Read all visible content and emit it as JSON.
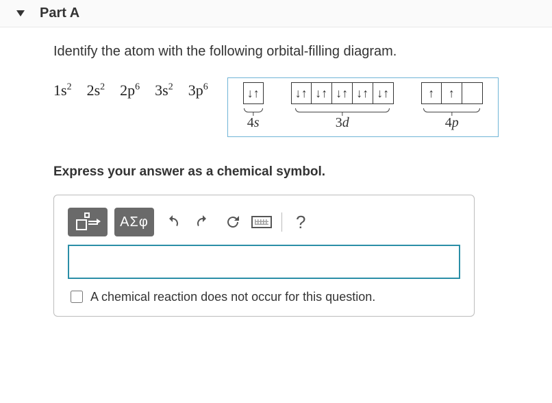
{
  "header": {
    "part_label": "Part A"
  },
  "question": "Identify the atom with the following orbital-filling diagram.",
  "electron_config": {
    "terms": [
      {
        "shell": "1s",
        "sup": "2"
      },
      {
        "shell": "2s",
        "sup": "2"
      },
      {
        "shell": "2p",
        "sup": "6"
      },
      {
        "shell": "3s",
        "sup": "2"
      },
      {
        "shell": "3p",
        "sup": "6"
      }
    ]
  },
  "orbital_diagram": {
    "box_border_color": "#6fb4d6",
    "groups": [
      {
        "label_num": "4",
        "label_letter": "s",
        "boxes": [
          "↓↑"
        ]
      },
      {
        "label_num": "3",
        "label_letter": "d",
        "boxes": [
          "↓↑",
          "↓↑",
          "↓↑",
          "↓↑",
          "↓↑"
        ]
      },
      {
        "label_num": "4",
        "label_letter": "p",
        "boxes": [
          "↑",
          "↑",
          ""
        ]
      }
    ]
  },
  "instruction": "Express your answer as a chemical symbol.",
  "toolbar": {
    "greek_label": "ΑΣφ",
    "help_label": "?"
  },
  "answer": {
    "value": "",
    "placeholder": ""
  },
  "no_reaction": {
    "checked": false,
    "label": "A chemical reaction does not occur for this question."
  }
}
